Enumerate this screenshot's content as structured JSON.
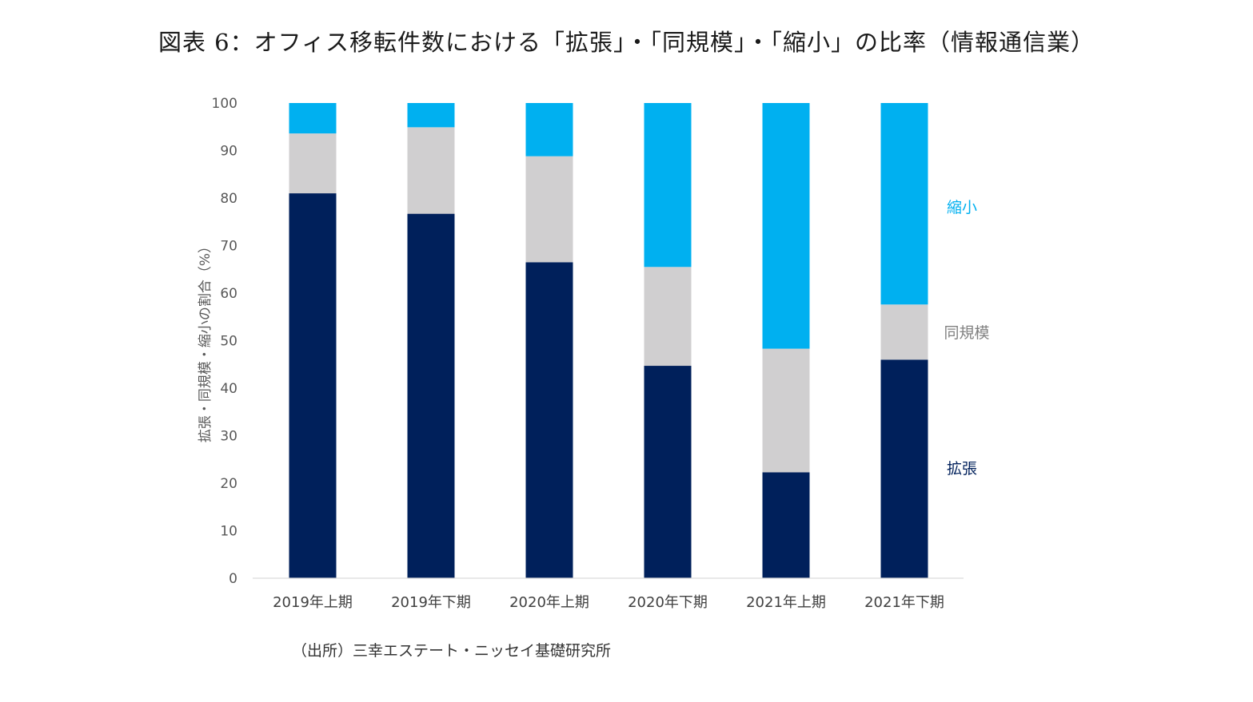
{
  "title": "図表 6：オフィス移転件数における「拡張」・「同規模」・「縮小」の比率（情報通信業）",
  "source": "（出所）三幸エステート・ニッセイ基礎研究所",
  "chart_data": {
    "type": "bar",
    "stacked": true,
    "categories": [
      "2019年上期",
      "2019年下期",
      "2020年上期",
      "2020年下期",
      "2021年上期",
      "2021年下期"
    ],
    "series": [
      {
        "name": "拡張",
        "color": "#00205b",
        "values": [
          81,
          76.7,
          66.5,
          44.7,
          22.3,
          46
        ]
      },
      {
        "name": "同規模",
        "color": "#d0cfd0",
        "values": [
          12.6,
          18.2,
          22.3,
          20.8,
          26,
          11.6
        ]
      },
      {
        "name": "縮小",
        "color": "#00b0f0",
        "values": [
          6.4,
          5.1,
          11.2,
          34.5,
          51.7,
          42.4
        ]
      }
    ],
    "ylabel": "拡張・同規模・縮小の割合（%）",
    "ylim": [
      0,
      100
    ],
    "yticks": [
      "0",
      "10",
      "20",
      "30",
      "40",
      "50",
      "60",
      "70",
      "80",
      "90",
      "100"
    ],
    "legend": "right, labels beside last bar",
    "grid": false
  }
}
